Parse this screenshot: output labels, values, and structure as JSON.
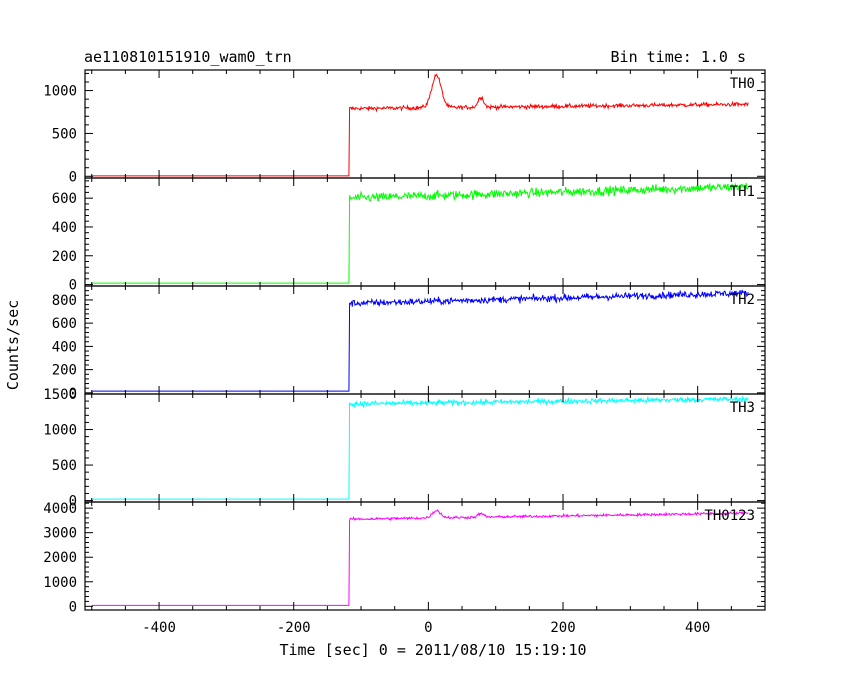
{
  "header": {
    "title": "ae110810151910_wam0_trn",
    "bin_time": "Bin time: 1.0 s"
  },
  "chart_data": {
    "type": "line",
    "xlabel": "Time [sec] 0 = 2011/08/10 15:19:10",
    "ylabel": "Counts/sec",
    "xlim": [
      -510,
      500
    ],
    "x_ticks": [
      -400,
      -200,
      0,
      200,
      400
    ],
    "data_x_range": [
      -500,
      475
    ],
    "step_time": -117,
    "grid": false,
    "panels": [
      {
        "name": "TH0",
        "color": "#ff0000",
        "ylim": [
          -20,
          1240
        ],
        "y_ticks": [
          0,
          500,
          1000
        ],
        "baseline": 5,
        "after_step": 790,
        "level_end": 840,
        "noise": 22,
        "peaks": [
          {
            "t": 12,
            "height": 380,
            "width": 7
          },
          {
            "t": 78,
            "height": 120,
            "width": 4
          }
        ]
      },
      {
        "name": "TH1",
        "color": "#00ff00",
        "ylim": [
          -10,
          740
        ],
        "y_ticks": [
          0,
          200,
          400,
          600
        ],
        "baseline": 10,
        "after_step": 600,
        "level_end": 680,
        "noise": 30,
        "peaks": []
      },
      {
        "name": "TH2",
        "color": "#0000ff",
        "ylim": [
          -10,
          920
        ],
        "y_ticks": [
          0,
          200,
          400,
          600,
          800
        ],
        "baseline": 15,
        "after_step": 770,
        "level_end": 860,
        "noise": 28,
        "peaks": []
      },
      {
        "name": "TH3",
        "color": "#00ffff",
        "ylim": [
          -20,
          1500
        ],
        "y_ticks": [
          0,
          500,
          1000,
          1500
        ],
        "baseline": 20,
        "after_step": 1360,
        "level_end": 1430,
        "noise": 35,
        "peaks": []
      },
      {
        "name": "TH0123",
        "color": "#ff00ff",
        "ylim": [
          -150,
          4250
        ],
        "y_ticks": [
          0,
          1000,
          2000,
          3000,
          4000
        ],
        "baseline": 40,
        "after_step": 3550,
        "level_end": 3800,
        "noise": 50,
        "peaks": [
          {
            "t": 12,
            "height": 300,
            "width": 6
          },
          {
            "t": 78,
            "height": 150,
            "width": 4
          }
        ]
      }
    ]
  }
}
